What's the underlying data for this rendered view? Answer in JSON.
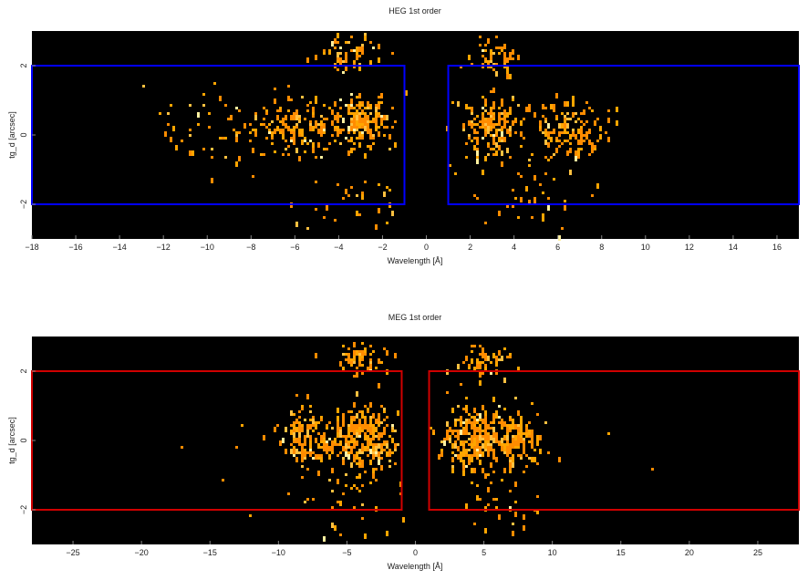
{
  "chart_data": [
    {
      "type": "heatmap",
      "title": "HEG 1st order",
      "xlabel": "Wavelength [Å]",
      "ylabel": "tg_d [arcsec]",
      "xlim": [
        -18,
        17
      ],
      "ylim": [
        -3,
        3
      ],
      "x_ticks": [
        -18,
        -16,
        -14,
        -12,
        -10,
        -8,
        -6,
        -4,
        -2,
        0,
        2,
        4,
        6,
        8,
        10,
        12,
        14,
        16
      ],
      "y_ticks": [
        -2,
        0,
        2
      ],
      "background": "#000000",
      "colormap": [
        "#ff8c00",
        "#ffa500",
        "#ffc040",
        "#fff0a0"
      ],
      "regions": [
        {
          "x": [
            -18,
            -1
          ],
          "y": [
            -2,
            2
          ],
          "color": "#0000ff"
        },
        {
          "x": [
            1,
            17
          ],
          "y": [
            -2,
            2
          ],
          "color": "#0000ff"
        }
      ],
      "clusters": [
        {
          "center": [
            -3,
            0.4
          ],
          "spread": [
            1.0,
            0.6
          ],
          "count": 170
        },
        {
          "center": [
            -6,
            0.3
          ],
          "spread": [
            1.6,
            0.7
          ],
          "count": 150
        },
        {
          "center": [
            -9,
            0.1
          ],
          "spread": [
            2.5,
            0.9
          ],
          "count": 50
        },
        {
          "center": [
            -3.5,
            2.4
          ],
          "spread": [
            1.3,
            0.4
          ],
          "count": 60
        },
        {
          "center": [
            -3,
            -1.8
          ],
          "spread": [
            2.5,
            0.8
          ],
          "count": 35
        },
        {
          "center": [
            3,
            0.3
          ],
          "spread": [
            0.9,
            0.6
          ],
          "count": 170
        },
        {
          "center": [
            6.5,
            0.2
          ],
          "spread": [
            1.4,
            0.7
          ],
          "count": 140
        },
        {
          "center": [
            3,
            2.3
          ],
          "spread": [
            0.9,
            0.4
          ],
          "count": 55
        },
        {
          "center": [
            5,
            -1.8
          ],
          "spread": [
            2.5,
            0.8
          ],
          "count": 35
        },
        {
          "center": [
            0,
            0
          ],
          "spread": [
            10,
            1.6
          ],
          "count": 40
        }
      ]
    },
    {
      "type": "heatmap",
      "title": "MEG 1st order",
      "xlabel": "Wavelength [Å]",
      "ylabel": "tg_d [arcsec]",
      "xlim": [
        -28,
        28
      ],
      "ylim": [
        -3,
        3
      ],
      "x_ticks": [
        -25,
        -20,
        -15,
        -10,
        -5,
        0,
        5,
        10,
        15,
        20,
        25
      ],
      "y_ticks": [
        -2,
        0,
        2
      ],
      "background": "#000000",
      "colormap": [
        "#ff8c00",
        "#ffa500",
        "#ffc040",
        "#fff0a0"
      ],
      "regions": [
        {
          "x": [
            -28,
            -1
          ],
          "y": [
            -2,
            2
          ],
          "color": "#d00000"
        },
        {
          "x": [
            1,
            28
          ],
          "y": [
            -2,
            2
          ],
          "color": "#d00000"
        }
      ],
      "clusters": [
        {
          "center": [
            -4,
            0.1
          ],
          "spread": [
            2.0,
            0.7
          ],
          "count": 260
        },
        {
          "center": [
            -8,
            0.1
          ],
          "spread": [
            1.6,
            0.7
          ],
          "count": 130
        },
        {
          "center": [
            -4,
            2.4
          ],
          "spread": [
            1.8,
            0.4
          ],
          "count": 60
        },
        {
          "center": [
            -5,
            -1.8
          ],
          "spread": [
            3.0,
            0.8
          ],
          "count": 30
        },
        {
          "center": [
            4,
            0.1
          ],
          "spread": [
            1.8,
            0.7
          ],
          "count": 240
        },
        {
          "center": [
            7,
            0.1
          ],
          "spread": [
            1.8,
            0.7
          ],
          "count": 160
        },
        {
          "center": [
            5,
            2.4
          ],
          "spread": [
            1.8,
            0.4
          ],
          "count": 60
        },
        {
          "center": [
            6,
            -1.8
          ],
          "spread": [
            3.0,
            0.8
          ],
          "count": 30
        },
        {
          "center": [
            0,
            0
          ],
          "spread": [
            14,
            1.6
          ],
          "count": 40
        }
      ]
    }
  ]
}
